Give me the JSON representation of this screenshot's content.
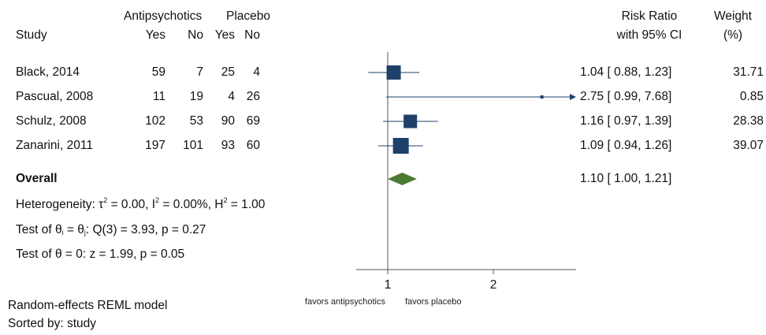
{
  "header": {
    "group1": "Antipsychotics",
    "group2": "Placebo",
    "study": "Study",
    "yes1": "Yes",
    "no1": "No",
    "yes2": "Yes",
    "no2": "No",
    "rr_line1": "Risk Ratio",
    "rr_line2": "with 95% CI",
    "weight_line1": "Weight",
    "weight_line2": "(%)"
  },
  "studies": [
    {
      "name": "Black, 2014",
      "yes1": "59",
      "no1": "7",
      "yes2": "25",
      "no2": "4",
      "ci_text": "1.04 [ 0.88, 1.23]",
      "weight_text": "31.71"
    },
    {
      "name": "Pascual, 2008",
      "yes1": "11",
      "no1": "19",
      "yes2": "4",
      "no2": "26",
      "ci_text": "2.75 [ 0.99, 7.68]",
      "weight_text": "0.85"
    },
    {
      "name": "Schulz, 2008",
      "yes1": "102",
      "no1": "53",
      "yes2": "90",
      "no2": "69",
      "ci_text": "1.16 [ 0.97, 1.39]",
      "weight_text": "28.38"
    },
    {
      "name": "Zanarini, 2011",
      "yes1": "197",
      "no1": "101",
      "yes2": "93",
      "no2": "60",
      "ci_text": "1.09 [ 0.94, 1.26]",
      "weight_text": "39.07"
    }
  ],
  "overall": {
    "label": "Overall",
    "ci_text": "1.10 [ 1.00, 1.21]"
  },
  "stats": {
    "het_prefix": "Heterogeneity: τ",
    "het_tau_sup": "2",
    "het_tau_val": " = 0.00, I",
    "het_i_sup": "2",
    "het_i_val": " = 0.00%, H",
    "het_h_sup": "2",
    "het_h_val": " = 1.00",
    "test1_a": "Test of θ",
    "test1_sub_i": "i",
    "test1_b": " = θ",
    "test1_sub_j": "j",
    "test1_c": ": Q(3) = 3.93, p = 0.27",
    "test2": "Test of θ = 0: z = 1.99, p = 0.05"
  },
  "axis": {
    "favors_left": "favors antipsychotics",
    "favors_right": "favors placebo"
  },
  "footer": {
    "model": "Random-effects REML model",
    "sorted": "Sorted by: study"
  },
  "colors": {
    "marker": "#1f3f6b",
    "diamond": "#4d7a32",
    "ci_line": "#1f3f6b",
    "axis": "#555555"
  },
  "chart_data": {
    "type": "forest",
    "measure": "Risk Ratio",
    "log_scale": true,
    "xticks": [
      1,
      2
    ],
    "null_line": 1,
    "studies": [
      {
        "name": "Black, 2014",
        "rr": 1.04,
        "lo": 0.88,
        "hi": 1.23,
        "weight": 31.71
      },
      {
        "name": "Pascual, 2008",
        "rr": 2.75,
        "lo": 0.99,
        "hi": 7.68,
        "weight": 0.85,
        "arrow_right": true
      },
      {
        "name": "Schulz, 2008",
        "rr": 1.16,
        "lo": 0.97,
        "hi": 1.39,
        "weight": 28.38
      },
      {
        "name": "Zanarini, 2011",
        "rr": 1.09,
        "lo": 0.94,
        "hi": 1.26,
        "weight": 39.07
      }
    ],
    "overall": {
      "rr": 1.1,
      "lo": 1.0,
      "hi": 1.21
    }
  }
}
